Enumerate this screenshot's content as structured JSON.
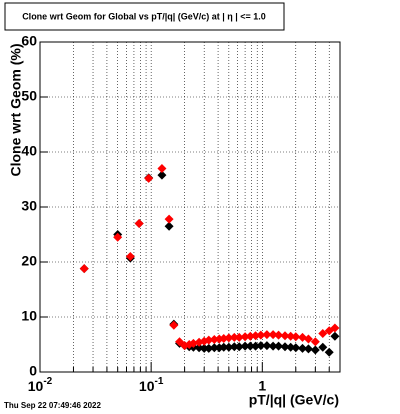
{
  "chart_data": {
    "type": "scatter",
    "title": "Clone wrt Geom for Global vs pT/|q| (GeV/c) at |  η  | <= 1.0",
    "x_label": "pT/|q| (GeV/c)",
    "y_label": "Clone wrt Geom (%)",
    "footer": "Thu Sep 22 07:49:46 2022",
    "x_log": true,
    "grid": true,
    "log_minor_grid": true,
    "xlim": [
      0.01,
      5
    ],
    "ylim": [
      0,
      60
    ],
    "xticks": [
      {
        "value": 0.01,
        "label": "10",
        "exponent": "-2"
      },
      {
        "value": 0.1,
        "label": "10",
        "exponent": "-1"
      },
      1
    ],
    "yticks": [
      0,
      10,
      20,
      30,
      40,
      50,
      60
    ],
    "x": [
      0.025,
      0.05,
      0.065,
      0.078,
      0.095,
      0.125,
      0.145,
      0.16,
      0.18,
      0.2,
      0.22,
      0.24,
      0.27,
      0.3,
      0.33,
      0.37,
      0.41,
      0.45,
      0.5,
      0.56,
      0.62,
      0.7,
      0.78,
      0.87,
      0.97,
      1.1,
      1.25,
      1.4,
      1.6,
      1.8,
      2.0,
      2.3,
      2.6,
      3.0,
      3.5,
      4.0,
      4.5
    ],
    "series": [
      {
        "color": "#000000",
        "values": [
          18.8,
          25.0,
          20.7,
          27.0,
          35.3,
          35.8,
          26.5,
          8.7,
          5.2,
          4.8,
          4.6,
          4.5,
          4.4,
          4.3,
          4.3,
          4.4,
          4.4,
          4.5,
          4.5,
          4.6,
          4.6,
          4.7,
          4.7,
          4.7,
          4.8,
          4.8,
          4.7,
          4.7,
          4.6,
          4.5,
          4.4,
          4.3,
          4.2,
          4.0,
          4.5,
          3.6,
          6.5
        ]
      },
      {
        "color": "#ff0000",
        "values": [
          18.8,
          24.5,
          21.0,
          27.0,
          35.2,
          37.0,
          27.8,
          8.5,
          5.5,
          4.8,
          5.0,
          5.2,
          5.4,
          5.6,
          5.8,
          5.9,
          6.0,
          6.1,
          6.2,
          6.3,
          6.3,
          6.4,
          6.5,
          6.6,
          6.7,
          6.8,
          6.8,
          6.7,
          6.6,
          6.5,
          6.4,
          6.3,
          6.0,
          5.5,
          7.0,
          7.5,
          8.0
        ]
      }
    ]
  }
}
